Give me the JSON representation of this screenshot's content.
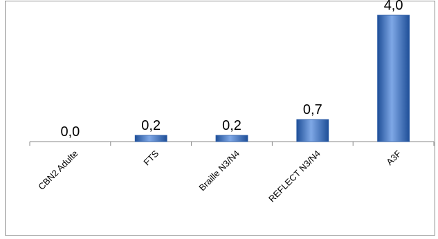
{
  "chart_data": {
    "type": "bar",
    "categories": [
      "CBN2 Adulte",
      "FTS",
      "Braille N3/N4",
      "REFLECT N3/N4",
      "A3F"
    ],
    "values": [
      0.0,
      0.2,
      0.2,
      0.7,
      4.0
    ],
    "data_labels": [
      "0,0",
      "0,2",
      "0,2",
      "0,7",
      "4,0"
    ],
    "ylim": [
      0,
      4.0
    ],
    "grid": false,
    "legend": "none",
    "bar_color": "#3d6fc0",
    "bar_gradient_light": "#7fa8e6",
    "bar_gradient_dark": "#1f4f98",
    "axis_color": "#8a8a8a"
  }
}
